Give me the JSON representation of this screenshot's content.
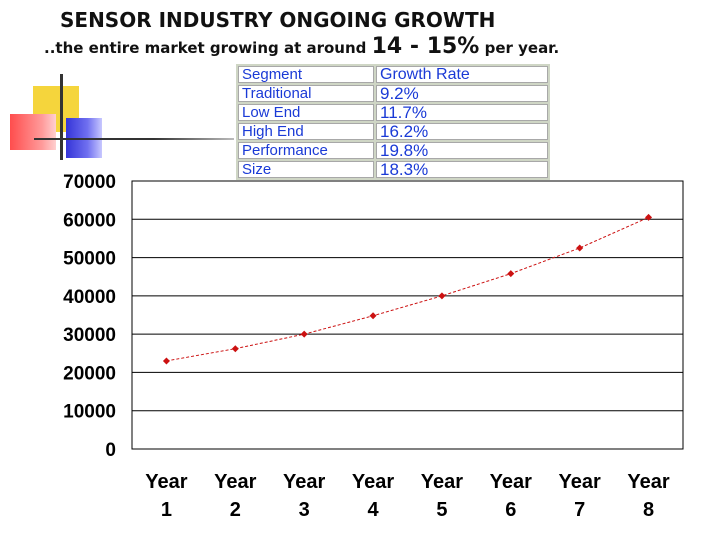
{
  "slide": {
    "title": "SENSOR INDUSTRY  ONGOING GROWTH",
    "subtitle_pre": "..the entire market growing at around ",
    "subtitle_big": "14 - 15%",
    "subtitle_post": " per year."
  },
  "segment_table": {
    "header": [
      "Segment",
      "Growth Rate"
    ],
    "rows": [
      [
        "Traditional",
        "9.2%"
      ],
      [
        "Low End",
        "11.7%"
      ],
      [
        "High End",
        "16.2%"
      ],
      [
        "Performance",
        "19.8%"
      ],
      [
        "Size",
        "18.3%"
      ]
    ]
  },
  "chart_data": {
    "type": "line",
    "categories": [
      "Year 1",
      "Year 2",
      "Year 3",
      "Year 4",
      "Year 5",
      "Year 6",
      "Year 7",
      "Year 8"
    ],
    "category_lines": [
      [
        "Year",
        "1"
      ],
      [
        "Year",
        "2"
      ],
      [
        "Year",
        "3"
      ],
      [
        "Year",
        "4"
      ],
      [
        "Year",
        "5"
      ],
      [
        "Year",
        "6"
      ],
      [
        "Year",
        "7"
      ],
      [
        "Year",
        "8"
      ]
    ],
    "series": [
      {
        "values": [
          23000,
          26200,
          30000,
          34800,
          40000,
          45800,
          52500,
          60500
        ],
        "color": "#cc1111"
      }
    ],
    "ylim": [
      0,
      70000
    ],
    "yticks": [
      0,
      10000,
      20000,
      30000,
      40000,
      50000,
      60000,
      70000
    ],
    "grid": true,
    "legend": "none"
  }
}
